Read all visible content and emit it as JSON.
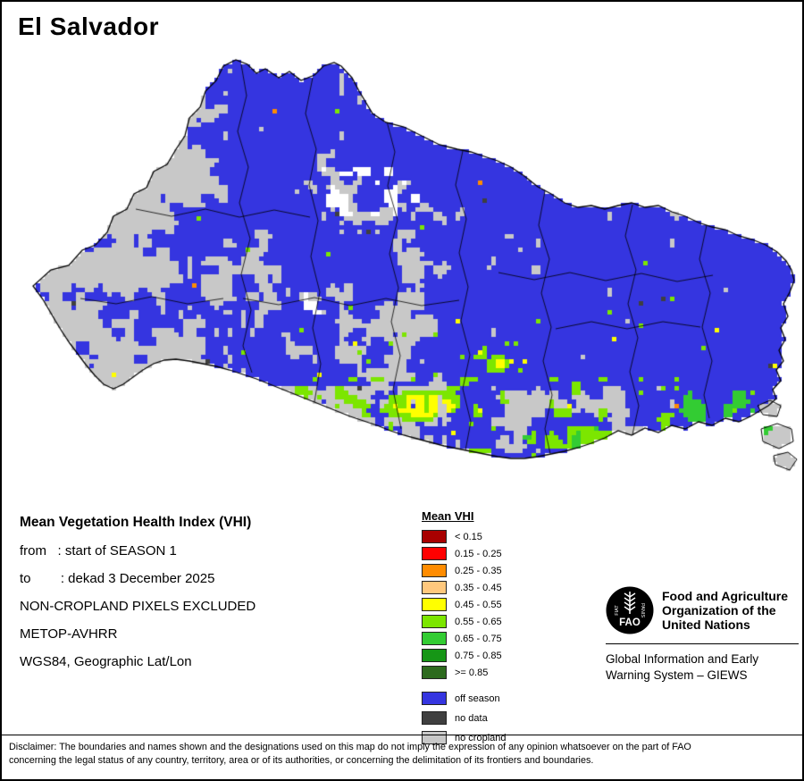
{
  "title": "El Salvador",
  "map": {
    "description": "El Salvador mean VHI raster map",
    "sea_color": "#FFFFFF",
    "boundary_color": "#000000"
  },
  "info": {
    "heading": "Mean Vegetation Health Index (VHI)",
    "lines": [
      "from   : start of SEASON 1",
      "to        : dekad 3 December 2025",
      "NON-CROPLAND PIXELS EXCLUDED",
      "METOP-AVHRR",
      "WGS84, Geographic Lat/Lon"
    ]
  },
  "legend": {
    "title": "Mean VHI",
    "classes": [
      {
        "color": "#A80000",
        "label": "< 0.15"
      },
      {
        "color": "#FF0000",
        "label": "0.15 - 0.25"
      },
      {
        "color": "#FF8C00",
        "label": "0.25 - 0.35"
      },
      {
        "color": "#FFC87D",
        "label": "0.35 - 0.45"
      },
      {
        "color": "#FFFF00",
        "label": "0.45 - 0.55"
      },
      {
        "color": "#7CE600",
        "label": "0.55 - 0.65"
      },
      {
        "color": "#33CC33",
        "label": "0.65 - 0.75"
      },
      {
        "color": "#169616",
        "label": "0.75 - 0.85"
      },
      {
        "color": "#2D6A1E",
        "label": ">= 0.85"
      }
    ],
    "categories": [
      {
        "color": "#3535E0",
        "label": "off season"
      },
      {
        "color": "#3F3F3F",
        "label": "no data"
      },
      {
        "color": "#C8C8C8",
        "label": "no cropland"
      }
    ]
  },
  "org": {
    "logo_text": "FAO",
    "logo_motto_left": "FIAT",
    "logo_motto_right": "PANIS",
    "name_lines": [
      "Food and Agriculture",
      "Organization of the",
      "United Nations"
    ],
    "giews_lines": [
      "Global Information and Early",
      "Warning System – GIEWS"
    ]
  },
  "disclaimer": {
    "line1": "Disclaimer: The boundaries and names shown and the designations used on this map do not imply the expression of any opinion whatsoever on the part of FAO",
    "line2": "concerning the legal status of any country, territory, area or of its authorities, or concerning the delimitation of its frontiers and boundaries."
  }
}
